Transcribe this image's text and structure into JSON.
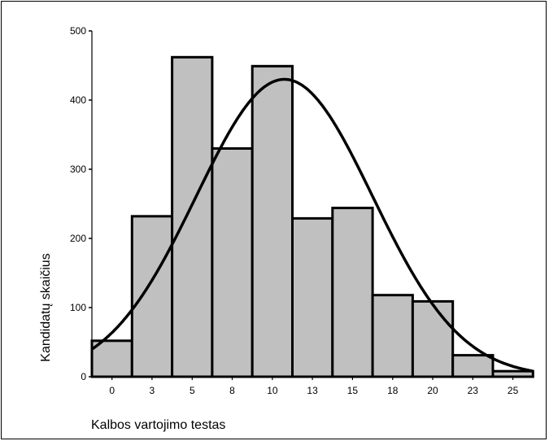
{
  "chart_data": {
    "type": "bar",
    "subtype": "histogram-with-normal-curve",
    "title": "",
    "xlabel": "Kalbos vartojimo testas",
    "ylabel": "Kandidatų skaičius",
    "categories": [
      "0",
      "3",
      "5",
      "8",
      "10",
      "13",
      "15",
      "18",
      "20",
      "23",
      "25"
    ],
    "values": [
      52,
      232,
      462,
      330,
      449,
      229,
      244,
      118,
      109,
      31,
      8
    ],
    "ylim": [
      0,
      500
    ],
    "yticks": [
      0,
      100,
      200,
      300,
      400,
      500
    ],
    "grid": false,
    "legend": "none",
    "bar_color": "#c0c0c0",
    "edge_color": "#000000",
    "curve_color": "#000000",
    "curve": {
      "type": "normal",
      "peak": 430,
      "mean_bin_index": 4.3,
      "sd_bins": 2.2
    }
  }
}
